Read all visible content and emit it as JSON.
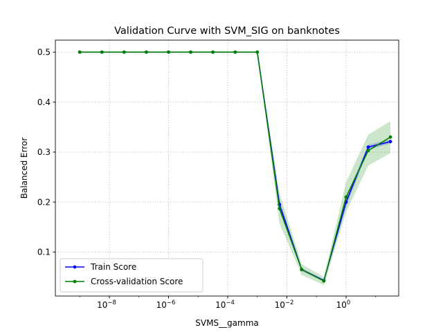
{
  "chart_data": {
    "type": "line",
    "title": "Validation Curve with SVM_SIG on banknotes",
    "xlabel": "SVMS__gamma",
    "ylabel": "Balanced Error",
    "xscale": "log",
    "xlim": [
      1.5e-10,
      60
    ],
    "ylim": [
      0.012,
      0.524
    ],
    "grid": true,
    "legend_position": "lower left",
    "x": [
      1e-09,
      5.62e-09,
      3.16e-08,
      1.78e-07,
      1e-06,
      5.62e-06,
      3.16e-05,
      0.000178,
      0.001,
      0.00562,
      0.0316,
      0.178,
      1.0,
      5.62,
      31.6
    ],
    "series": [
      {
        "name": "Train Score",
        "color": "#0000ff",
        "values": [
          0.5,
          0.5,
          0.5,
          0.5,
          0.5,
          0.5,
          0.5,
          0.5,
          0.5,
          0.195,
          0.065,
          0.043,
          0.2,
          0.31,
          0.321
        ],
        "band_lower": [
          0.5,
          0.5,
          0.5,
          0.5,
          0.5,
          0.5,
          0.5,
          0.5,
          0.5,
          0.185,
          0.062,
          0.041,
          0.19,
          0.305,
          0.317
        ],
        "band_upper": [
          0.5,
          0.5,
          0.5,
          0.5,
          0.5,
          0.5,
          0.5,
          0.5,
          0.5,
          0.205,
          0.068,
          0.045,
          0.21,
          0.315,
          0.325
        ]
      },
      {
        "name": "Cross-validation Score",
        "color": "#008000",
        "values": [
          0.5,
          0.5,
          0.5,
          0.5,
          0.5,
          0.5,
          0.5,
          0.5,
          0.5,
          0.187,
          0.065,
          0.042,
          0.21,
          0.303,
          0.33
        ],
        "band_lower": [
          0.5,
          0.5,
          0.5,
          0.5,
          0.5,
          0.5,
          0.5,
          0.5,
          0.5,
          0.157,
          0.054,
          0.034,
          0.18,
          0.273,
          0.298
        ],
        "band_upper": [
          0.5,
          0.5,
          0.5,
          0.5,
          0.5,
          0.5,
          0.5,
          0.5,
          0.5,
          0.218,
          0.076,
          0.05,
          0.24,
          0.335,
          0.362
        ]
      }
    ],
    "x_ticks": [
      {
        "base": "10",
        "exp": "−8",
        "value": 1e-08
      },
      {
        "base": "10",
        "exp": "−6",
        "value": 1e-06
      },
      {
        "base": "10",
        "exp": "−4",
        "value": 0.0001
      },
      {
        "base": "10",
        "exp": "−2",
        "value": 0.01
      },
      {
        "base": "10",
        "exp": "0",
        "value": 1
      }
    ],
    "y_ticks": [
      {
        "label": "0.1",
        "value": 0.1
      },
      {
        "label": "0.2",
        "value": 0.2
      },
      {
        "label": "0.3",
        "value": 0.3
      },
      {
        "label": "0.4",
        "value": 0.4
      },
      {
        "label": "0.5",
        "value": 0.5
      }
    ]
  }
}
